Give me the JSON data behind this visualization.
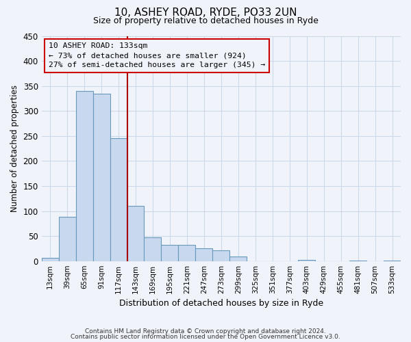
{
  "title": "10, ASHEY ROAD, RYDE, PO33 2UN",
  "subtitle": "Size of property relative to detached houses in Ryde",
  "xlabel": "Distribution of detached houses by size in Ryde",
  "ylabel": "Number of detached properties",
  "bin_labels": [
    "13sqm",
    "39sqm",
    "65sqm",
    "91sqm",
    "117sqm",
    "143sqm",
    "169sqm",
    "195sqm",
    "221sqm",
    "247sqm",
    "273sqm",
    "299sqm",
    "325sqm",
    "351sqm",
    "377sqm",
    "403sqm",
    "429sqm",
    "455sqm",
    "481sqm",
    "507sqm",
    "533sqm"
  ],
  "bin_values": [
    6,
    88,
    340,
    335,
    245,
    110,
    48,
    32,
    32,
    25,
    21,
    9,
    0,
    0,
    0,
    2,
    0,
    0,
    1,
    0,
    1
  ],
  "bar_color": "#c8d8ee",
  "bar_edge_color": "#6699bb",
  "vline_color": "#aa0000",
  "ylim": [
    0,
    450
  ],
  "annotation_line1": "10 ASHEY ROAD: 133sqm",
  "annotation_line2": "← 73% of detached houses are smaller (924)",
  "annotation_line3": "27% of semi-detached houses are larger (345) →",
  "footer_line1": "Contains HM Land Registry data © Crown copyright and database right 2024.",
  "footer_line2": "Contains public sector information licensed under the Open Government Licence v3.0.",
  "bg_color": "#f0f4fa",
  "grid_color": "#ccd8e8"
}
